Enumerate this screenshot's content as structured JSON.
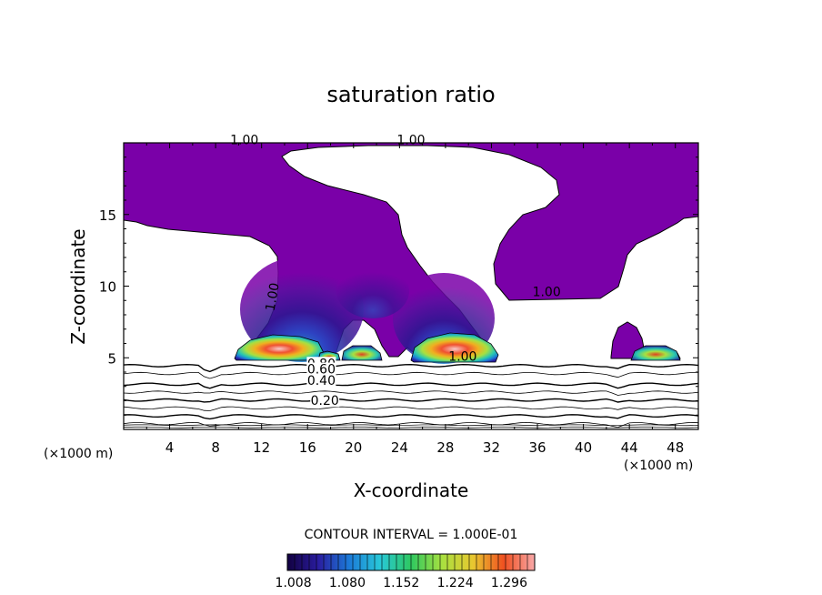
{
  "chart_data": {
    "type": "heatmap",
    "title": "saturation ratio",
    "xlabel": "X-coordinate",
    "ylabel": "Z-coordinate",
    "x_unit_left": "(×1000 m)",
    "x_unit_right": "(×1000 m)",
    "xlim": [
      0,
      50
    ],
    "ylim": [
      0,
      20
    ],
    "x_ticks": [
      4,
      8,
      12,
      16,
      20,
      24,
      28,
      32,
      36,
      40,
      44,
      48
    ],
    "y_ticks": [
      5,
      10,
      15
    ],
    "contour_interval_text": "CONTOUR INTERVAL = 1.000E-01",
    "colorbar_labels": [
      "1.008",
      "1.080",
      "1.152",
      "1.224",
      "1.296"
    ],
    "colorbar_range": [
      1.0,
      1.33
    ],
    "colorbar_colors": [
      "#120040",
      "#2a1da0",
      "#1c7ad8",
      "#28c8d8",
      "#2ec860",
      "#a8e040",
      "#e8c830",
      "#f05020",
      "#f8a8a8"
    ],
    "contour_labels": [
      {
        "text": "1.00",
        "x": 10.5,
        "z": 19.9
      },
      {
        "text": "1.00",
        "x": 25.0,
        "z": 19.9
      },
      {
        "text": "1.00",
        "x": 13.3,
        "z": 9.2
      },
      {
        "text": "1.00",
        "x": 36.8,
        "z": 9.3
      },
      {
        "text": "1.00",
        "x": 29.5,
        "z": 4.8
      },
      {
        "text": "0.80",
        "x": 17.2,
        "z": 4.3
      },
      {
        "text": "0.60",
        "x": 17.2,
        "z": 3.9
      },
      {
        "text": "0.40",
        "x": 17.2,
        "z": 3.1
      },
      {
        "text": "0.20",
        "x": 17.5,
        "z": 1.7
      }
    ],
    "subsaturated_contours": [
      0.2,
      0.3,
      0.4,
      0.5,
      0.6,
      0.7,
      0.8,
      0.9
    ],
    "grid": false
  }
}
